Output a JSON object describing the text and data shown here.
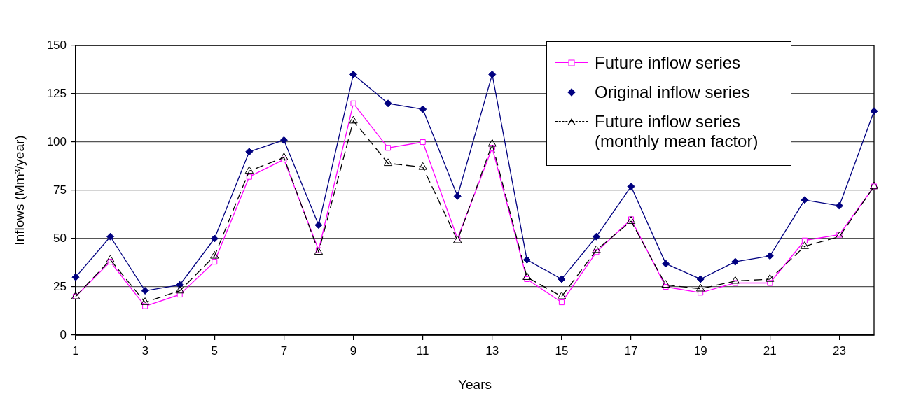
{
  "chart_data": {
    "type": "line",
    "xlabel": "Years",
    "ylabel": "Inflows (Mm³/year)",
    "x": [
      1,
      2,
      3,
      4,
      5,
      6,
      7,
      8,
      9,
      10,
      11,
      12,
      13,
      14,
      15,
      16,
      17,
      18,
      19,
      20,
      21,
      22,
      23,
      24
    ],
    "xlim": [
      1,
      24
    ],
    "xticks": [
      1,
      3,
      5,
      7,
      9,
      11,
      13,
      15,
      17,
      19,
      21,
      23
    ],
    "ylim": [
      0,
      150
    ],
    "yticks": [
      0,
      25,
      50,
      75,
      100,
      125,
      150
    ],
    "grid": "y",
    "legend": "top right",
    "series": [
      {
        "name": "Future inflow series",
        "color": "#ff00ff",
        "marker": "square",
        "line_style": "solid",
        "values": [
          20,
          38,
          15,
          21,
          38,
          82,
          91,
          44,
          120,
          97,
          100,
          50,
          97,
          29,
          17,
          43,
          60,
          25,
          22,
          27,
          27,
          49,
          52,
          77
        ]
      },
      {
        "name": "Original inflow series",
        "color": "#000080",
        "marker": "diamond",
        "line_style": "solid",
        "values": [
          30,
          51,
          23,
          26,
          50,
          95,
          101,
          57,
          135,
          120,
          117,
          72,
          135,
          39,
          29,
          51,
          77,
          37,
          29,
          38,
          41,
          70,
          67,
          116
        ]
      },
      {
        "name": "Future inflow series (monthly mean factor)",
        "color": "#000000",
        "marker": "triangle",
        "line_style": "dashed",
        "values": [
          20,
          39,
          17,
          23,
          41,
          85,
          92,
          43,
          111,
          89,
          87,
          49,
          99,
          30,
          20,
          44,
          59,
          26,
          24,
          28,
          29,
          46,
          51,
          77
        ]
      }
    ]
  }
}
